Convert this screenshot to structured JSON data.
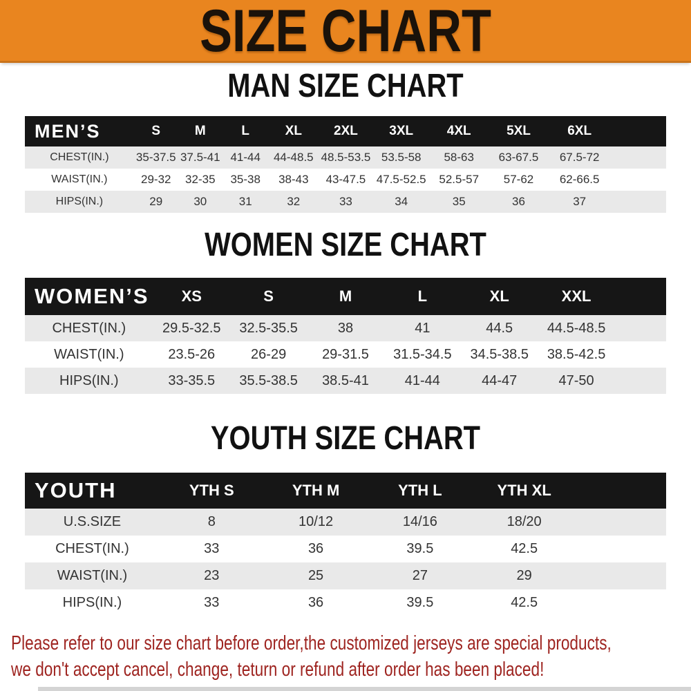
{
  "banner": {
    "title": "SIZE CHART"
  },
  "theme": {
    "banner_bg": "#E9851F",
    "banner_text": "#1a120a",
    "header_bg": "#161616",
    "header_text": "#ffffff",
    "stripe": "#E9E9E9",
    "row_white": "#ffffff",
    "value_color": "#333333",
    "heading_color": "#111111",
    "footer_red": "#9E2420"
  },
  "chart_data": [
    {
      "type": "table",
      "title": "MAN SIZE CHART",
      "header": [
        "MEN’S",
        "S",
        "M",
        "L",
        "XL",
        "2XL",
        "3XL",
        "4XL",
        "5XL",
        "6XL"
      ],
      "col_widths": [
        "17%",
        "6.9%",
        "6.9%",
        "7.2%",
        "7.8%",
        "8.5%",
        "8.8%",
        "9.2%",
        "9.4%",
        "9.6%",
        "8.7%"
      ],
      "rows": [
        [
          "CHEST(IN.)",
          "35-37.5",
          "37.5-41",
          "41-44",
          "44-48.5",
          "48.5-53.5",
          "53.5-58",
          "58-63",
          "63-67.5",
          "67.5-72"
        ],
        [
          "WAIST(IN.)",
          "29-32",
          "32-35",
          "35-38",
          "38-43",
          "43-47.5",
          "47.5-52.5",
          "52.5-57",
          "57-62",
          "62-66.5"
        ],
        [
          "HIPS(IN.)",
          "29",
          "30",
          "31",
          "32",
          "33",
          "34",
          "35",
          "36",
          "37"
        ]
      ]
    },
    {
      "type": "table",
      "title": "WOMEN SIZE CHART",
      "header": [
        "WOMEN’S",
        "XS",
        "S",
        "M",
        "L",
        "XL",
        "XXL"
      ],
      "col_widths": [
        "20%",
        "12%",
        "12%",
        "12%",
        "12%",
        "12%",
        "12%",
        "8%"
      ],
      "rows": [
        [
          "CHEST(IN.)",
          "29.5-32.5",
          "32.5-35.5",
          "38",
          "41",
          "44.5",
          "44.5-48.5"
        ],
        [
          "WAIST(IN.)",
          "23.5-26",
          "26-29",
          "29-31.5",
          "31.5-34.5",
          "34.5-38.5",
          "38.5-42.5"
        ],
        [
          "HIPS(IN.)",
          "33-35.5",
          "35.5-38.5",
          "38.5-41",
          "41-44",
          "44-47",
          "47-50"
        ]
      ]
    },
    {
      "type": "table",
      "title": "YOUTH SIZE CHART",
      "header": [
        "YOUTH",
        "YTH S",
        "YTH M",
        "YTH L",
        "YTH XL"
      ],
      "col_widths": [
        "21%",
        "16.25%",
        "16.25%",
        "16.25%",
        "16.25%",
        "14%"
      ],
      "rows": [
        [
          "U.S.SIZE",
          "8",
          "10/12",
          "14/16",
          "18/20"
        ],
        [
          "CHEST(IN.)",
          "33",
          "36",
          "39.5",
          "42.5"
        ],
        [
          "WAIST(IN.)",
          "23",
          "25",
          "27",
          "29"
        ],
        [
          "HIPS(IN.)",
          "33",
          "36",
          "39.5",
          "42.5"
        ]
      ]
    }
  ],
  "footer": {
    "line1": "Please refer to our size chart before order,the customized jerseys are special products,",
    "line2": "we don't accept cancel, change, teturn or refund after order has been placed!"
  }
}
